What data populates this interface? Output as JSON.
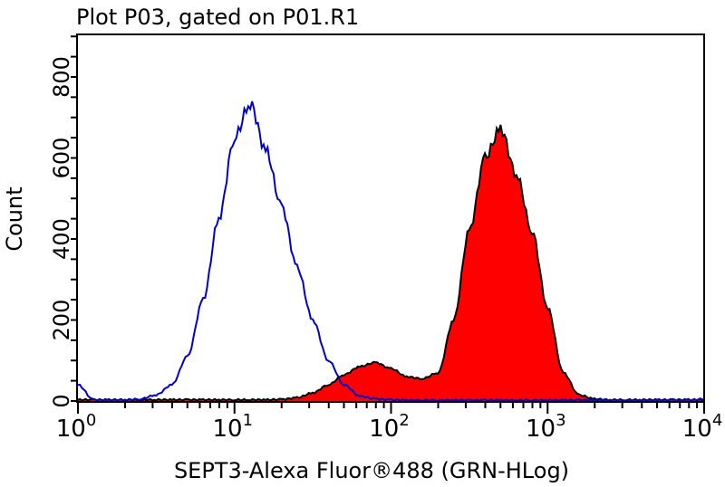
{
  "chart_data": {
    "type": "area",
    "title": "Plot P03, gated on P01.R1",
    "xlabel": "SEPT3-Alexa Fluor®488 (GRN-HLog)",
    "ylabel": "Count",
    "x_scale": "log",
    "xlim": [
      1,
      10000
    ],
    "ylim": [
      0,
      905
    ],
    "x_ticks": [
      {
        "base": "10",
        "exp": "0",
        "value": 1
      },
      {
        "base": "10",
        "exp": "1",
        "value": 10
      },
      {
        "base": "10",
        "exp": "2",
        "value": 100
      },
      {
        "base": "10",
        "exp": "3",
        "value": 1000
      },
      {
        "base": "10",
        "exp": "4",
        "value": 10000
      }
    ],
    "y_ticks": [
      "0",
      "200",
      "400",
      "600",
      "800"
    ],
    "grid": false,
    "x": [
      1,
      1.26,
      1.58,
      2,
      2.51,
      3.16,
      3.98,
      5.01,
      6.31,
      7.94,
      10,
      12.6,
      15.8,
      20,
      25.1,
      31.6,
      39.8,
      50.1,
      63.1,
      79.4,
      100,
      126,
      158,
      200,
      251,
      316,
      398,
      501,
      631,
      794,
      1000,
      1259,
      1585,
      1995,
      2512,
      3162,
      3981,
      5012,
      6310,
      7943,
      10000
    ],
    "series": [
      {
        "color": "#0000cc",
        "fill": "none",
        "values": [
          40,
          3,
          2,
          3,
          5,
          15,
          40,
          110,
          250,
          450,
          650,
          735,
          620,
          480,
          330,
          200,
          100,
          40,
          12,
          5,
          3,
          2,
          2,
          2,
          2,
          2,
          2,
          2,
          2,
          2,
          2,
          2,
          2,
          2,
          2,
          2,
          2,
          2,
          2,
          2,
          5
        ]
      },
      {
        "color": "#000000",
        "fill": "#ff0000",
        "values": [
          3,
          3,
          3,
          3,
          3,
          3,
          3,
          3,
          3,
          3,
          3,
          3,
          3,
          4,
          8,
          20,
          40,
          65,
          85,
          95,
          80,
          60,
          55,
          70,
          200,
          420,
          600,
          672,
          560,
          420,
          230,
          70,
          15,
          5,
          3,
          3,
          3,
          3,
          3,
          3,
          3
        ]
      }
    ]
  }
}
